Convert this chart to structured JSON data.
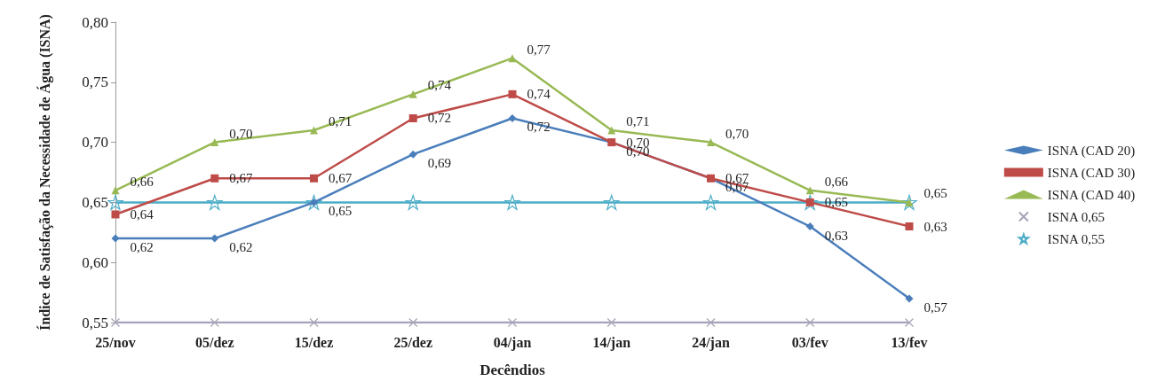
{
  "chart_data": {
    "type": "line",
    "xlabel": "Decêndios",
    "ylabel": "Índice de Satisfação da Necessidade de Água (ISNA)",
    "categories": [
      "25/nov",
      "05/dez",
      "15/dez",
      "25/dez",
      "04/jan",
      "14/jan",
      "24/jan",
      "03/fev",
      "13/fev"
    ],
    "series": [
      {
        "name": "ISNA (CAD 20)",
        "color": "#4a7ebb",
        "marker": "diamond",
        "values": [
          0.62,
          0.62,
          0.65,
          0.69,
          0.72,
          0.7,
          0.67,
          0.63,
          0.57
        ],
        "value_labels": [
          "0,62",
          "0,62",
          "0,65",
          "0,69",
          "0,72",
          "0,70",
          "0,67",
          "0,63",
          "0,57"
        ]
      },
      {
        "name": "ISNA (CAD 30)",
        "color": "#be4b48",
        "marker": "square",
        "values": [
          0.64,
          0.67,
          0.67,
          0.72,
          0.74,
          0.7,
          0.67,
          0.65,
          0.63
        ],
        "value_labels": [
          "0,64",
          "0,67",
          "0,67",
          "0,72",
          "0,74",
          "0,70",
          "0,67",
          "0,65",
          "0,63"
        ]
      },
      {
        "name": "ISNA (CAD 40)",
        "color": "#98b954",
        "marker": "triangle",
        "values": [
          0.66,
          0.7,
          0.71,
          0.74,
          0.77,
          0.71,
          0.7,
          0.66,
          0.65
        ],
        "value_labels": [
          "0,66",
          "0,70",
          "0,71",
          "0,74",
          "0,77",
          "0,71",
          "0,70",
          "0,66",
          "0,65"
        ]
      },
      {
        "name": "ISNA 0,65",
        "color": "#a7a3b8",
        "marker": "cross",
        "values": [
          0.55,
          0.55,
          0.55,
          0.55,
          0.55,
          0.55,
          0.55,
          0.55,
          0.55
        ]
      },
      {
        "name": "ISNA 0,55",
        "color": "#4bacc6",
        "marker": "star",
        "values": [
          0.65,
          0.65,
          0.65,
          0.65,
          0.65,
          0.65,
          0.65,
          0.65,
          0.65
        ]
      }
    ],
    "ylim": [
      0.55,
      0.8
    ],
    "yticks": [
      {
        "value": 0.55,
        "label": "0,55"
      },
      {
        "value": 0.6,
        "label": "0,60"
      },
      {
        "value": 0.65,
        "label": "0,65"
      },
      {
        "value": 0.7,
        "label": "0,70"
      },
      {
        "value": 0.75,
        "label": "0,75"
      },
      {
        "value": 0.8,
        "label": "0,80"
      }
    ],
    "grid": false,
    "legend": "right"
  }
}
